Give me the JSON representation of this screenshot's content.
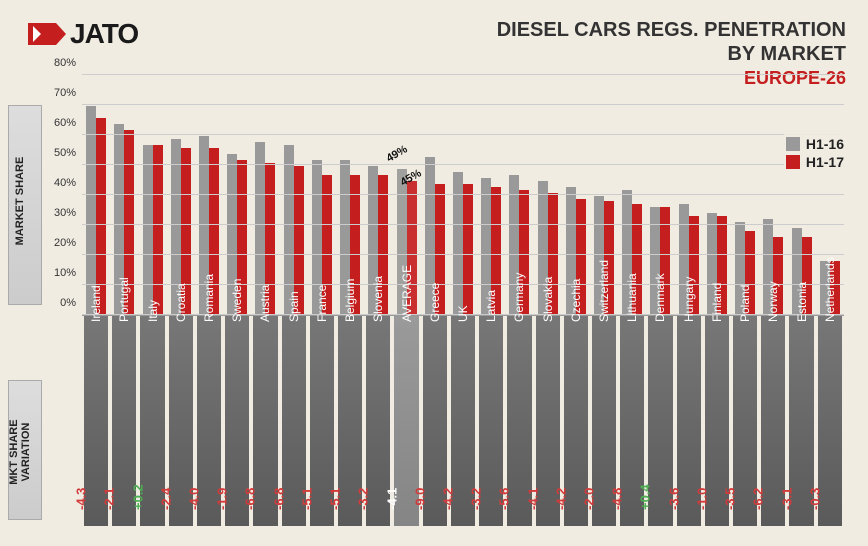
{
  "logo_text": "JATO",
  "title_line1": "DIESEL CARS REGS. PENETRATION",
  "title_line2": "BY MARKET",
  "title_sub": "EUROPE-26",
  "y_axis_label": "MARKET SHARE",
  "variation_label": "MKT SHARE VARIATION",
  "legend": {
    "s1": "H1-16",
    "s2": "H1-17"
  },
  "colors": {
    "s1": "#999999",
    "s2": "#c41e1e",
    "col_bg": "#6a6a6a",
    "avg_bg": "#8f8f8f",
    "neg": "#d43a3a",
    "pos": "#4caf50",
    "avg_var": "#ffffff"
  },
  "chart": {
    "type": "bar",
    "ymax": 80,
    "ymin": 0,
    "ystep": 10,
    "avg_callout": {
      "h116": "49%",
      "h117": "45%"
    }
  },
  "markets": [
    {
      "name": "Ireland",
      "h116": 70,
      "h117": 66,
      "var": "-4.3",
      "cls": "neg"
    },
    {
      "name": "Portugal",
      "h116": 64,
      "h117": 62,
      "var": "-2.1",
      "cls": "neg"
    },
    {
      "name": "Italy",
      "h116": 57,
      "h117": 57,
      "var": "+0.2",
      "cls": "pos"
    },
    {
      "name": "Croatia",
      "h116": 59,
      "h117": 56,
      "var": "-2.4",
      "cls": "neg"
    },
    {
      "name": "Romania",
      "h116": 60,
      "h117": 56,
      "var": "-4.0",
      "cls": "neg"
    },
    {
      "name": "Sweden",
      "h116": 54,
      "h117": 52,
      "var": "-1.9",
      "cls": "neg"
    },
    {
      "name": "Austria",
      "h116": 58,
      "h117": 51,
      "var": "-6.8",
      "cls": "neg"
    },
    {
      "name": "Spain",
      "h116": 57,
      "h117": 50,
      "var": "-6.8",
      "cls": "neg"
    },
    {
      "name": "France",
      "h116": 52,
      "h117": 47,
      "var": "-5.1",
      "cls": "neg"
    },
    {
      "name": "Belgium",
      "h116": 52,
      "h117": 47,
      "var": "-5.1",
      "cls": "neg"
    },
    {
      "name": "Slovenia",
      "h116": 50,
      "h117": 47,
      "var": "-3.2",
      "cls": "neg"
    },
    {
      "name": "AVERAGE",
      "h116": 49,
      "h117": 45,
      "var": "-4.1",
      "cls": "avg",
      "avg": true
    },
    {
      "name": "Greece",
      "h116": 53,
      "h117": 44,
      "var": "-9.0",
      "cls": "neg"
    },
    {
      "name": "UK",
      "h116": 48,
      "h117": 44,
      "var": "-4.2",
      "cls": "neg"
    },
    {
      "name": "Latvia",
      "h116": 46,
      "h117": 43,
      "var": "-3.2",
      "cls": "neg"
    },
    {
      "name": "Germany",
      "h116": 47,
      "h117": 42,
      "var": "-5.6",
      "cls": "neg"
    },
    {
      "name": "Slovakia",
      "h116": 45,
      "h117": 41,
      "var": "-4.1",
      "cls": "neg"
    },
    {
      "name": "Czechia",
      "h116": 43,
      "h117": 39,
      "var": "-4.2",
      "cls": "neg"
    },
    {
      "name": "Switzerland",
      "h116": 40,
      "h117": 38,
      "var": "-2.0",
      "cls": "neg"
    },
    {
      "name": "Lithuania",
      "h116": 42,
      "h117": 37,
      "var": "-4.8",
      "cls": "neg"
    },
    {
      "name": "Denmark",
      "h116": 36,
      "h117": 36,
      "var": "+0.4",
      "cls": "pos"
    },
    {
      "name": "Hungary",
      "h116": 37,
      "h117": 33,
      "var": "-3.6",
      "cls": "neg"
    },
    {
      "name": "Finland",
      "h116": 34,
      "h117": 33,
      "var": "-1.0",
      "cls": "neg"
    },
    {
      "name": "Poland",
      "h116": 31,
      "h117": 28,
      "var": "-3.5",
      "cls": "neg"
    },
    {
      "name": "Norway",
      "h116": 32,
      "h117": 26,
      "var": "-6.2",
      "cls": "neg"
    },
    {
      "name": "Estonia",
      "h116": 29,
      "h117": 26,
      "var": "-3.1",
      "cls": "neg"
    },
    {
      "name": "Netherlands",
      "h116": 18,
      "h117": 18,
      "var": "-0.3",
      "cls": "neg"
    }
  ]
}
